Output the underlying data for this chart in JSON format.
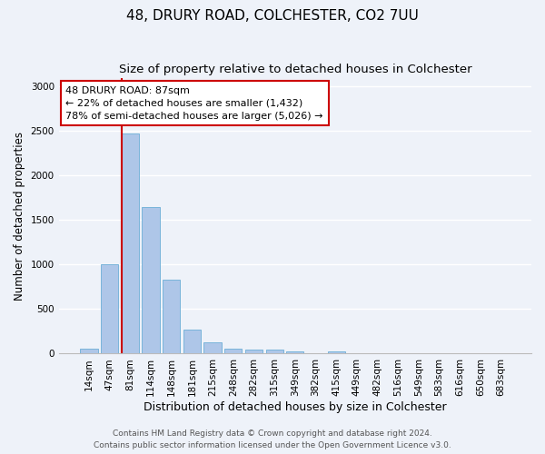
{
  "title": "48, DRURY ROAD, COLCHESTER, CO2 7UU",
  "subtitle": "Size of property relative to detached houses in Colchester",
  "xlabel": "Distribution of detached houses by size in Colchester",
  "ylabel": "Number of detached properties",
  "bar_labels": [
    "14sqm",
    "47sqm",
    "81sqm",
    "114sqm",
    "148sqm",
    "181sqm",
    "215sqm",
    "248sqm",
    "282sqm",
    "315sqm",
    "349sqm",
    "382sqm",
    "415sqm",
    "449sqm",
    "482sqm",
    "516sqm",
    "549sqm",
    "583sqm",
    "616sqm",
    "650sqm",
    "683sqm"
  ],
  "bar_values": [
    55,
    1000,
    2470,
    1650,
    830,
    270,
    130,
    55,
    45,
    45,
    30,
    0,
    25,
    0,
    0,
    0,
    0,
    0,
    0,
    0,
    0
  ],
  "bar_color": "#aec6e8",
  "bar_edgecolor": "#6baed6",
  "property_line_bin_index": 2,
  "property_line_color": "#cc0000",
  "annotation_line1": "48 DRURY ROAD: 87sqm",
  "annotation_line2": "← 22% of detached houses are smaller (1,432)",
  "annotation_line3": "78% of semi-detached houses are larger (5,026) →",
  "annotation_box_edgecolor": "#cc0000",
  "ylim": [
    0,
    3100
  ],
  "yticks": [
    0,
    500,
    1000,
    1500,
    2000,
    2500,
    3000
  ],
  "footer1": "Contains HM Land Registry data © Crown copyright and database right 2024.",
  "footer2": "Contains public sector information licensed under the Open Government Licence v3.0.",
  "background_color": "#eef2f9",
  "grid_color": "#ffffff",
  "title_fontsize": 11,
  "subtitle_fontsize": 9.5,
  "xlabel_fontsize": 9,
  "ylabel_fontsize": 8.5,
  "tick_fontsize": 7.5,
  "annotation_fontsize": 8,
  "footer_fontsize": 6.5
}
